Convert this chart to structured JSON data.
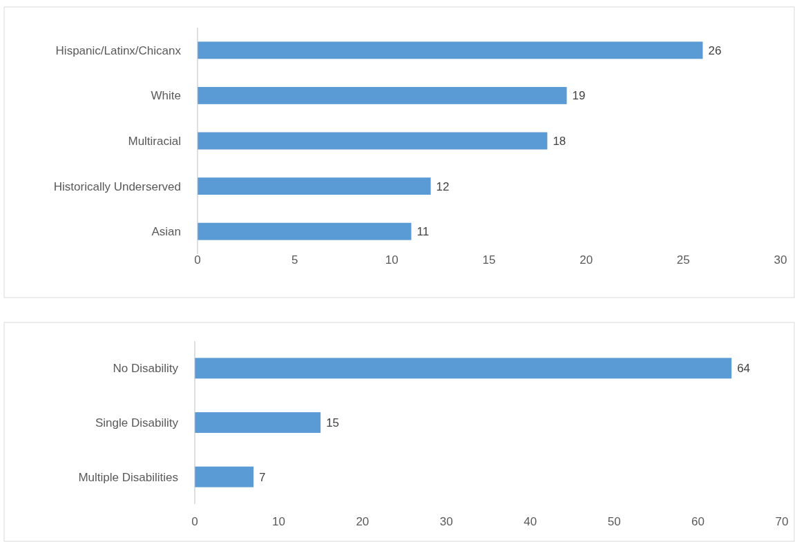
{
  "chart_data": [
    {
      "type": "bar",
      "orientation": "horizontal",
      "categories": [
        "Hispanic/Latinx/Chicanx",
        "White",
        "Multiracial",
        "Historically Underserved",
        "Asian"
      ],
      "values": [
        26,
        19,
        18,
        12,
        11
      ],
      "color": "#5b9bd5",
      "xlim": [
        0,
        30
      ],
      "xticks": [
        0,
        5,
        10,
        15,
        20,
        25,
        30
      ],
      "data_labels": true,
      "grid": false
    },
    {
      "type": "bar",
      "orientation": "horizontal",
      "categories": [
        "No Disability",
        "Single Disability",
        "Multiple Disabilities"
      ],
      "values": [
        64,
        15,
        7
      ],
      "color": "#5b9bd5",
      "xlim": [
        0,
        70
      ],
      "xticks": [
        0,
        10,
        20,
        30,
        40,
        50,
        60,
        70
      ],
      "data_labels": true,
      "grid": false
    }
  ]
}
